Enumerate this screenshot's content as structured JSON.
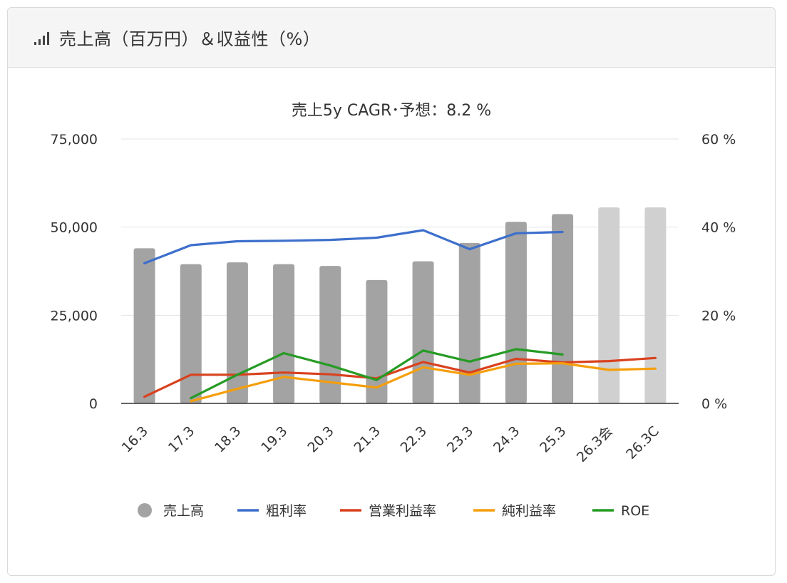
{
  "header": {
    "title": "売上高（百万円）＆収益性（%）",
    "icon": "signal-bars-icon"
  },
  "chart_data": {
    "type": "bar",
    "title": "売上5y CAGR･予想：8.2 %",
    "categories": [
      "16.3",
      "17.3",
      "18.3",
      "19.3",
      "20.3",
      "21.3",
      "22.3",
      "23.3",
      "24.3",
      "25.3",
      "26.3会",
      "26.3C"
    ],
    "y_left": {
      "ticks": [
        "75,000",
        "50,000",
        "25,000",
        "0"
      ],
      "lim": [
        0,
        75000
      ]
    },
    "y_right": {
      "ticks": [
        "60 %",
        "40 %",
        "20 %",
        "0 %"
      ],
      "lim": [
        0,
        60
      ]
    },
    "bars": {
      "name": "売上高",
      "values": [
        44000,
        39500,
        40000,
        39500,
        39000,
        35000,
        40300,
        45500,
        51500,
        53700,
        55600,
        55600
      ],
      "forecast": [
        false,
        false,
        false,
        false,
        false,
        false,
        false,
        false,
        false,
        false,
        true,
        true
      ],
      "color": "#a3a3a3",
      "forecast_color": "#d0d0d0"
    },
    "series": [
      {
        "name": "粗利率",
        "color": "#3d6fcc",
        "values": [
          31.8,
          35.9,
          36.8,
          36.9,
          37.1,
          37.6,
          39.3,
          35.0,
          38.6,
          38.9,
          null,
          null
        ]
      },
      {
        "name": "営業利益率",
        "color": "#d9411e",
        "values": [
          1.5,
          6.5,
          6.5,
          7.0,
          6.6,
          5.7,
          9.4,
          7.0,
          10.1,
          9.3,
          9.6,
          10.3
        ]
      },
      {
        "name": "純利益率",
        "color": "#f59e0b",
        "values": [
          null,
          0.5,
          3.3,
          6.0,
          4.8,
          3.6,
          8.2,
          6.5,
          9.0,
          9.1,
          7.6,
          7.9
        ]
      },
      {
        "name": "ROE",
        "color": "#259b24",
        "values": [
          null,
          1.2,
          6.5,
          11.4,
          8.6,
          5.3,
          12.0,
          9.5,
          12.3,
          11.1,
          null,
          null
        ]
      }
    ],
    "legend": [
      {
        "name": "売上高",
        "marker": "circle",
        "color": "#a3a3a3"
      },
      {
        "name": "粗利率",
        "marker": "line",
        "color": "#3d6fcc"
      },
      {
        "name": "営業利益率",
        "marker": "line",
        "color": "#d9411e"
      },
      {
        "name": "純利益率",
        "marker": "line",
        "color": "#f59e0b"
      },
      {
        "name": "ROE",
        "marker": "line",
        "color": "#259b24"
      }
    ],
    "legend_position": "bottom",
    "grid": true
  }
}
